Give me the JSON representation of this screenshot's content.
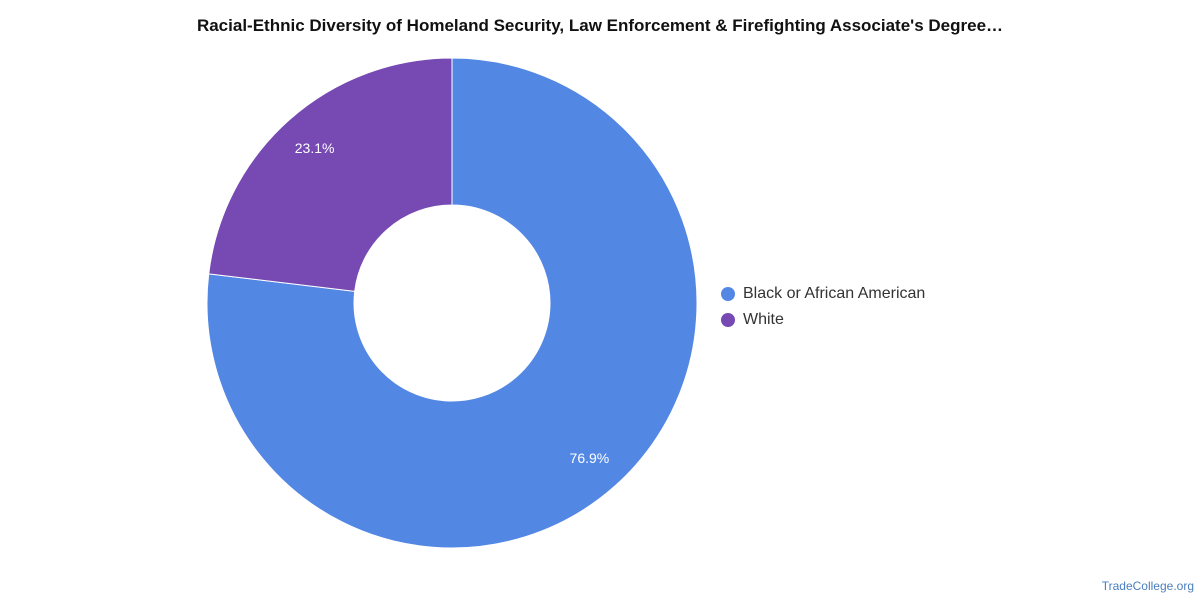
{
  "chart_data": {
    "type": "pie",
    "title": "Racial-Ethnic Diversity of Homeland Security, Law Enforcement & Firefighting Associate's Degree…",
    "categories": [
      "Black or African American",
      "White"
    ],
    "values": [
      76.9,
      23.1
    ],
    "value_labels": [
      "76.9%",
      "23.1%"
    ],
    "colors": [
      "#5387e4",
      "#7649b3"
    ],
    "donut": true,
    "legend_position": "right"
  },
  "footer": {
    "source": "TradeCollege.org"
  }
}
